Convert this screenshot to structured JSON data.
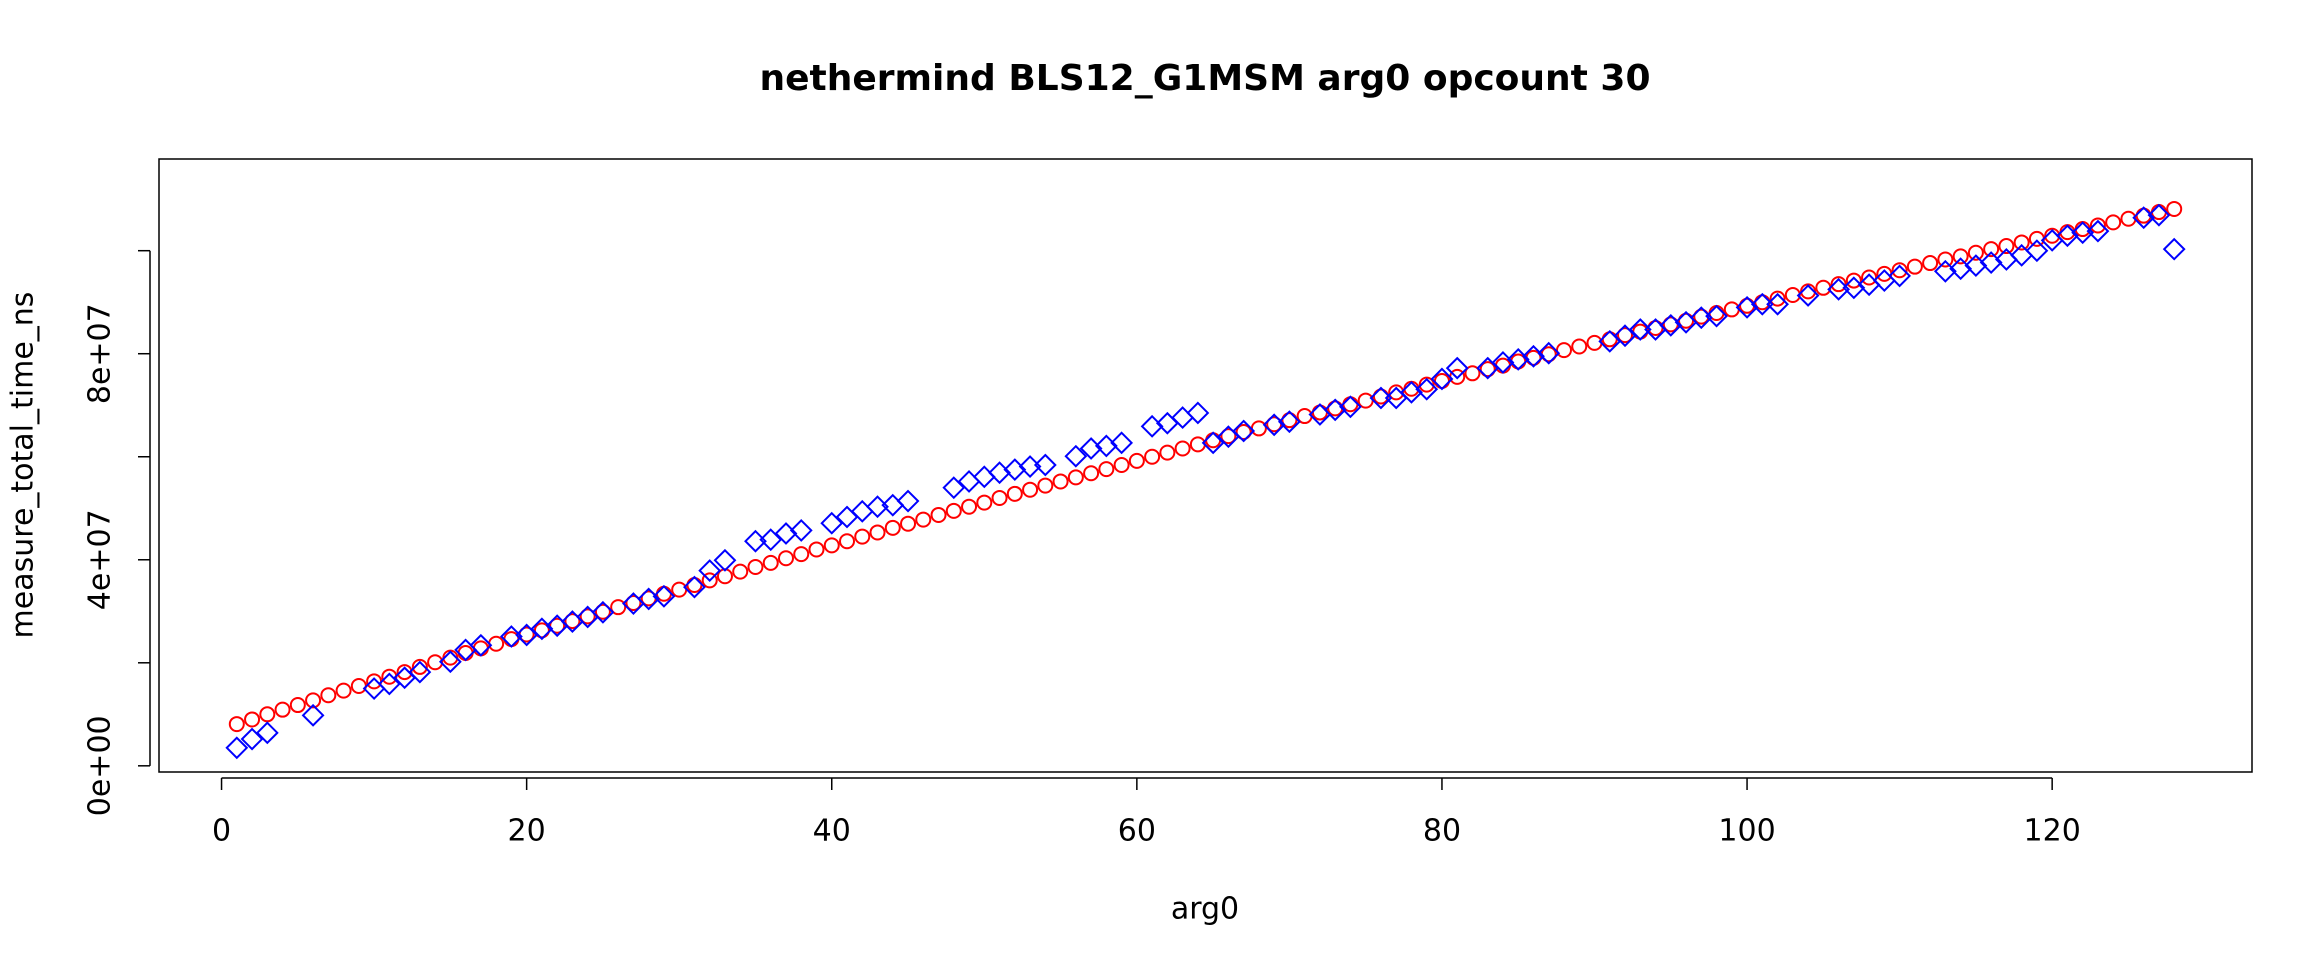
{
  "chart_data": {
    "type": "scatter",
    "title": "nethermind BLS12_G1MSM arg0 opcount 30",
    "xlabel": "arg0",
    "ylabel": "measure_total_time_ns",
    "xlim": [
      -4.1,
      133.1
    ],
    "ylim": [
      -1200000.0,
      117800000.0
    ],
    "xticks": [
      0,
      20,
      40,
      60,
      80,
      100,
      120
    ],
    "yticks": [
      {
        "value": 0,
        "label": "0e+00"
      },
      {
        "value": 20000000.0,
        "label": null
      },
      {
        "value": 40000000.0,
        "label": "4e+07"
      },
      {
        "value": 60000000.0,
        "label": null
      },
      {
        "value": 80000000.0,
        "label": "8e+07"
      },
      {
        "value": 100000000.0,
        "label": null
      }
    ],
    "series": [
      {
        "color": "#ff0000",
        "marker": "circle",
        "x": [
          1,
          2,
          3,
          4,
          5,
          6,
          7,
          8,
          9,
          10,
          11,
          12,
          13,
          14,
          15,
          16,
          17,
          18,
          19,
          20,
          21,
          22,
          23,
          24,
          25,
          26,
          27,
          28,
          29,
          30,
          31,
          32,
          33,
          34,
          35,
          36,
          37,
          38,
          39,
          40,
          41,
          42,
          43,
          44,
          45,
          46,
          47,
          48,
          49,
          50,
          51,
          52,
          53,
          54,
          55,
          56,
          57,
          58,
          59,
          60,
          61,
          62,
          63,
          64,
          65,
          66,
          67,
          68,
          69,
          70,
          71,
          72,
          73,
          74,
          75,
          76,
          77,
          78,
          79,
          80,
          81,
          82,
          83,
          84,
          85,
          86,
          87,
          88,
          89,
          90,
          91,
          92,
          93,
          94,
          95,
          96,
          97,
          98,
          99,
          100,
          101,
          102,
          103,
          104,
          105,
          106,
          107,
          108,
          109,
          110,
          111,
          112,
          113,
          114,
          115,
          116,
          117,
          118,
          119,
          120,
          121,
          122,
          123,
          124,
          125,
          126,
          127,
          128
        ],
        "values": [
          8100000.0,
          9000000.0,
          10000000.0,
          10900000.0,
          11800000.0,
          12700000.0,
          13700000.0,
          14600000.0,
          15500000.0,
          16400000.0,
          17300000.0,
          18200000.0,
          19200000.0,
          20100000.0,
          21000000.0,
          21900000.0,
          22800000.0,
          23700000.0,
          24600000.0,
          25500000.0,
          26300000.0,
          27200000.0,
          28100000.0,
          29000000.0,
          29900000.0,
          30800000.0,
          31600000.0,
          32500000.0,
          33400000.0,
          34200000.0,
          35100000.0,
          36000000.0,
          36800000.0,
          37700000.0,
          38600000.0,
          39400000.0,
          40300000.0,
          41100000.0,
          42000000.0,
          42800000.0,
          43600000.0,
          44500000.0,
          45300000.0,
          46200000.0,
          47000000.0,
          47800000.0,
          48700000.0,
          49500000.0,
          50300000.0,
          51100000.0,
          52000000.0,
          52800000.0,
          53600000.0,
          54400000.0,
          55200000.0,
          56000000.0,
          56800000.0,
          57600000.0,
          58400000.0,
          59200000.0,
          60000000.0,
          60800000.0,
          61600000.0,
          62400000.0,
          63200000.0,
          64000000.0,
          64800000.0,
          65500000.0,
          66300000.0,
          67100000.0,
          67900000.0,
          68600000.0,
          69400000.0,
          70200000.0,
          70900000.0,
          71700000.0,
          72500000.0,
          73200000.0,
          74000000.0,
          74700000.0,
          75500000.0,
          76200000.0,
          77000000.0,
          77700000.0,
          78500000.0,
          79200000.0,
          79900000.0,
          80700000.0,
          81400000.0,
          82100000.0,
          82800000.0,
          83600000.0,
          84300000.0,
          85000000.0,
          85700000.0,
          86400000.0,
          87200000.0,
          87900000.0,
          88600000.0,
          89300000.0,
          90000000.0,
          90700000.0,
          91400000.0,
          92100000.0,
          92800000.0,
          93500000.0,
          94200000.0,
          94800000.0,
          95500000.0,
          96200000.0,
          96900000.0,
          97600000.0,
          98300000.0,
          98900000.0,
          99600000.0,
          100300000.0,
          100900000.0,
          101600000.0,
          102300000.0,
          102900000.0,
          103600000.0,
          104200000.0,
          104900000.0,
          105500000.0,
          106200000.0,
          106800000.0,
          107500000.0,
          108100000.0
        ]
      },
      {
        "color": "#0000ff",
        "marker": "diamond",
        "x": [
          1,
          2,
          3,
          6,
          10,
          11,
          12,
          13,
          15,
          16,
          17,
          19,
          20,
          21,
          22,
          23,
          24,
          25,
          27,
          28,
          29,
          31,
          32,
          33,
          35,
          36,
          37,
          38,
          40,
          41,
          42,
          43,
          44,
          45,
          48,
          49,
          50,
          51,
          52,
          53,
          54,
          56,
          57,
          58,
          59,
          61,
          62,
          63,
          64,
          65,
          66,
          67,
          69,
          70,
          72,
          73,
          74,
          76,
          77,
          78,
          79,
          80,
          81,
          83,
          84,
          85,
          86,
          87,
          91,
          92,
          93,
          94,
          95,
          96,
          97,
          98,
          100,
          101,
          102,
          104,
          106,
          107,
          108,
          109,
          110,
          113,
          114,
          115,
          116,
          117,
          118,
          119,
          120,
          121,
          122,
          123,
          126,
          127,
          128
        ],
        "values": [
          3500000.0,
          5200000.0,
          6400000.0,
          9800000.0,
          15000000.0,
          15900000.0,
          17100000.0,
          18200000.0,
          20200000.0,
          22500000.0,
          23400000.0,
          25100000.0,
          25400000.0,
          26600000.0,
          27200000.0,
          28000000.0,
          28900000.0,
          29800000.0,
          31500000.0,
          32400000.0,
          32900000.0,
          34700000.0,
          37900000.0,
          39900000.0,
          43600000.0,
          43900000.0,
          45100000.0,
          45700000.0,
          47100000.0,
          48300000.0,
          49400000.0,
          50300000.0,
          50600000.0,
          51400000.0,
          54000000.0,
          55200000.0,
          56100000.0,
          56900000.0,
          57500000.0,
          58100000.0,
          58400000.0,
          60100000.0,
          61600000.0,
          62100000.0,
          62700000.0,
          65900000.0,
          66500000.0,
          67600000.0,
          68500000.0,
          62700000.0,
          63900000.0,
          65000000.0,
          66200000.0,
          66800000.0,
          68200000.0,
          69100000.0,
          69700000.0,
          71400000.0,
          71400000.0,
          72500000.0,
          73100000.0,
          75100000.0,
          77200000.0,
          77200000.0,
          78300000.0,
          78900000.0,
          79500000.0,
          80100000.0,
          82400000.0,
          83500000.0,
          84700000.0,
          84700000.0,
          85500000.0,
          86100000.0,
          87000000.0,
          87300000.0,
          89000000.0,
          89600000.0,
          89600000.0,
          91300000.0,
          92500000.0,
          92800000.0,
          93400000.0,
          94200000.0,
          95100000.0,
          96000000.0,
          96500000.0,
          97100000.0,
          97700000.0,
          98300000.0,
          99100000.0,
          100000000.0,
          102000000.0,
          102900000.0,
          103500000.0,
          103800000.0,
          106400000.0,
          106900000.0,
          100300000.0
        ]
      }
    ]
  }
}
